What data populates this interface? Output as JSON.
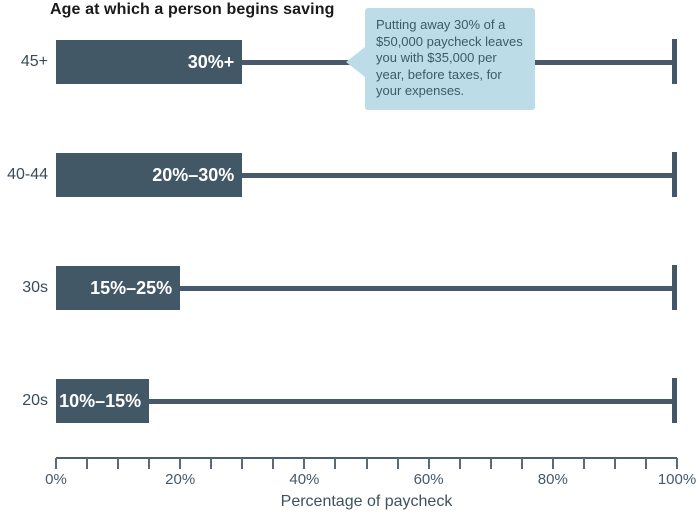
{
  "title": "Age at which a person begins saving",
  "callout": {
    "text": "Putting away 30% of a\n$50,000 paycheck leaves\nyou with $35,000 per\nyear, before taxes, for\nyour expenses."
  },
  "chart_data": {
    "type": "bar",
    "orientation": "horizontal",
    "title": "Age at which a person begins saving",
    "categories": [
      "45+",
      "40-44",
      "30s",
      "20s"
    ],
    "bar_labels": [
      "30%+",
      "20%–30%",
      "15%–25%",
      "10%–15%"
    ],
    "bar_end_values": [
      30,
      30,
      20,
      15
    ],
    "whisker_end_value": 100,
    "xlabel": "Percentage of paycheck",
    "xlim": [
      0,
      100
    ],
    "x_tick_labels": [
      "0%",
      "20%",
      "40%",
      "60%",
      "80%",
      "100%"
    ],
    "minor_tick_step_pct": 5,
    "annotation_target_category": "45+",
    "colors": {
      "bar": "#425866",
      "whisker": "#47596a",
      "callout_bg": "#bcdde8",
      "callout_text": "#3c5a68",
      "axis_text": "#3d5260",
      "category_text": "#3a4c58",
      "title_text": "#1a1a1a",
      "bar_label_text": "#ffffff"
    }
  }
}
